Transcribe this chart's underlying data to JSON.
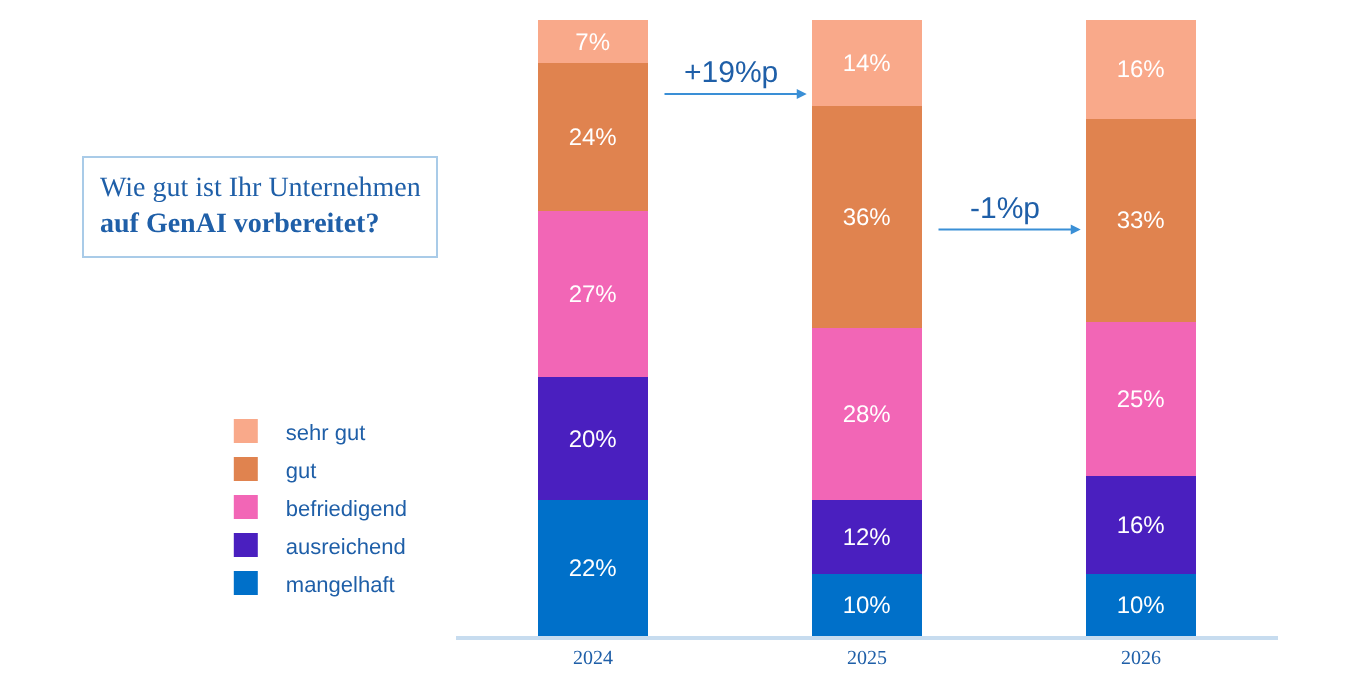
{
  "chart_data": {
    "type": "bar",
    "stacked": true,
    "title": "Wie gut ist Ihr Unternehmen\nauf GenAI vorbereitet?",
    "categories": [
      "2024",
      "2025",
      "2026"
    ],
    "series": [
      {
        "name": "mangelhaft",
        "color": "#0070c9",
        "values": [
          22,
          10,
          10
        ],
        "value_labels": [
          "22%",
          "10%",
          "10%"
        ]
      },
      {
        "name": "ausreichend",
        "color": "#4a1fbf",
        "values": [
          20,
          12,
          16
        ],
        "value_labels": [
          "20%",
          "12%",
          "16%"
        ]
      },
      {
        "name": "befriedigend",
        "color": "#f266b6",
        "values": [
          27,
          28,
          25
        ],
        "value_labels": [
          "27%",
          "28%",
          "25%"
        ]
      },
      {
        "name": "gut",
        "color": "#e0834f",
        "values": [
          24,
          36,
          33
        ],
        "value_labels": [
          "24%",
          "36%",
          "33%"
        ]
      },
      {
        "name": "sehr gut",
        "color": "#f9a98a",
        "values": [
          7,
          14,
          16
        ],
        "value_labels": [
          "7%",
          "14%",
          "16%"
        ]
      }
    ],
    "annotations": [
      "+19%p",
      "-1%p"
    ],
    "legend": "left"
  }
}
